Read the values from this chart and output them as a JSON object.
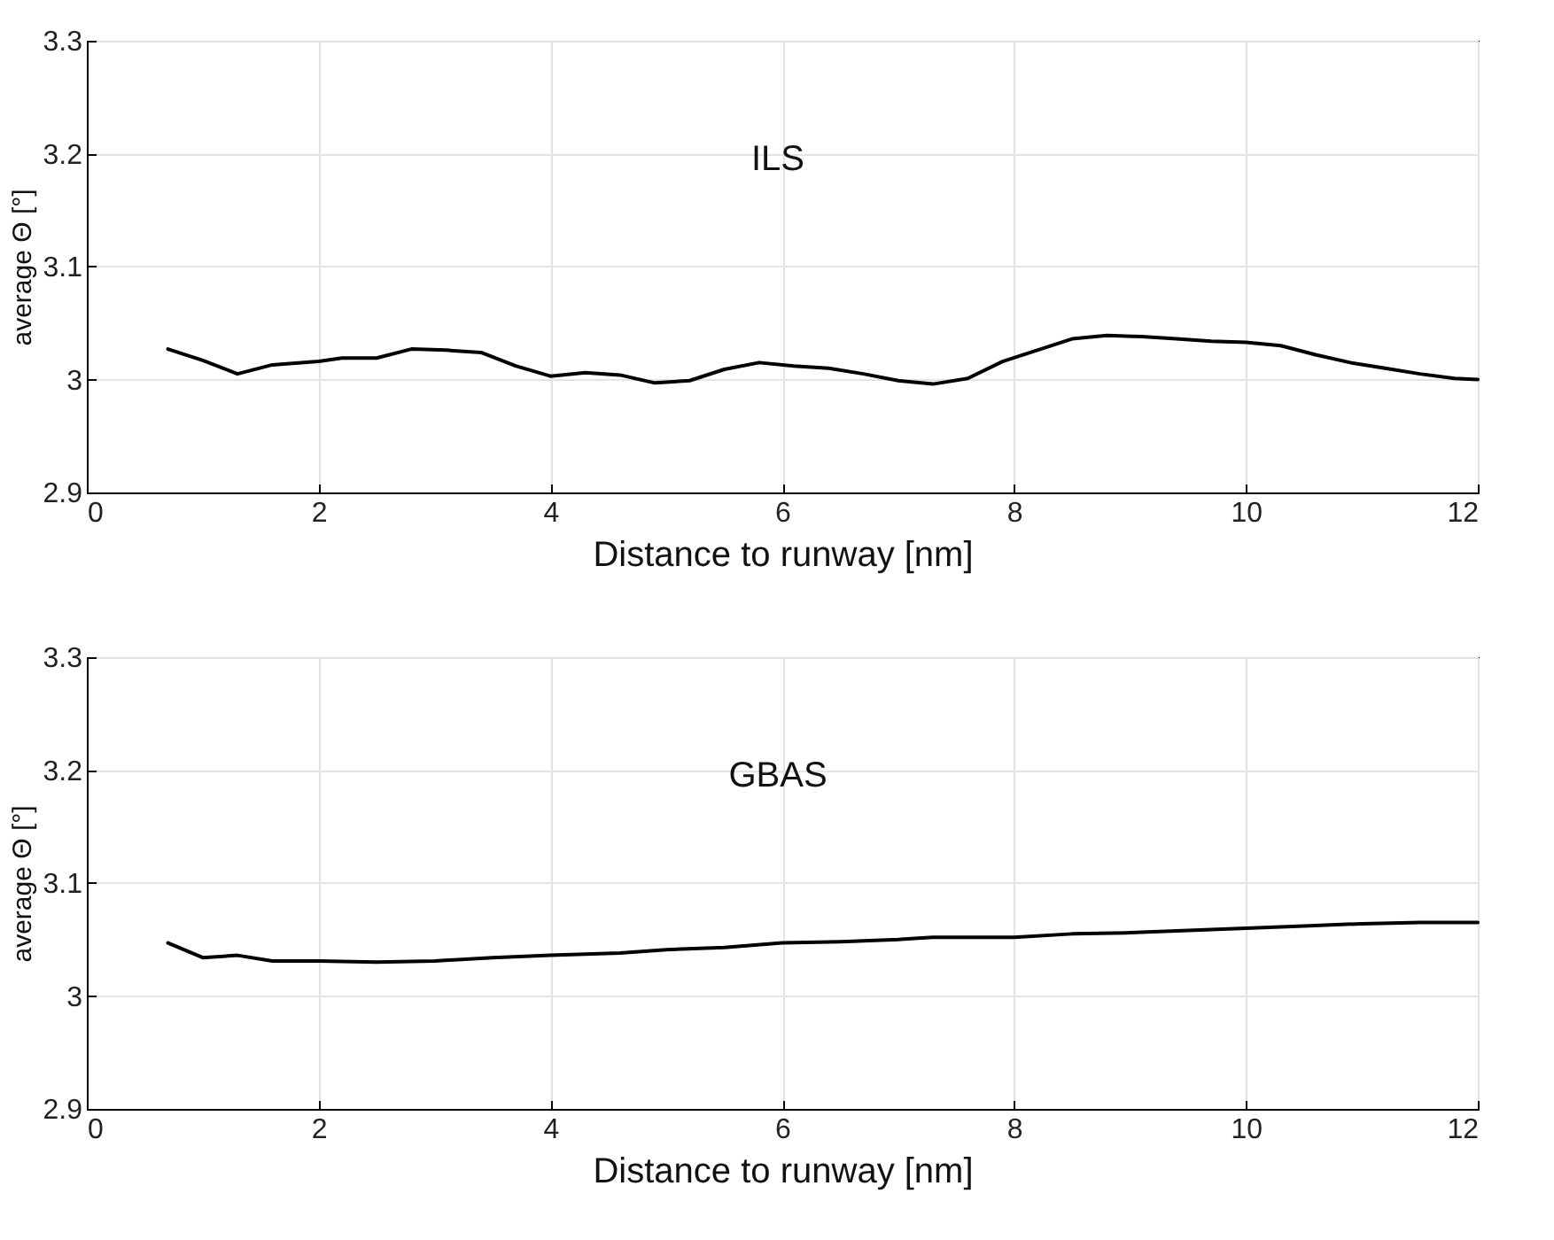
{
  "chart_data": [
    {
      "type": "line",
      "xlabel": "Distance to runway [nm]",
      "ylabel": "average Θ [°]",
      "annotations": [
        "ILS"
      ],
      "xlim": [
        0,
        12
      ],
      "xticks": [
        0,
        2,
        4,
        6,
        8,
        10,
        12
      ],
      "ylim": [
        2.9,
        3.3
      ],
      "yticks": [
        2.9,
        3,
        3.1,
        3.2,
        3.3
      ],
      "grid": true,
      "series": [
        {
          "color": "#000000",
          "x": [
            0.7,
            1.0,
            1.3,
            1.6,
            2.0,
            2.2,
            2.5,
            2.8,
            3.1,
            3.4,
            3.7,
            4.0,
            4.3,
            4.6,
            4.9,
            5.2,
            5.5,
            5.8,
            6.1,
            6.4,
            6.7,
            7.0,
            7.3,
            7.6,
            7.9,
            8.2,
            8.5,
            8.8,
            9.1,
            9.4,
            9.7,
            10.0,
            10.3,
            10.6,
            10.9,
            11.2,
            11.5,
            11.8,
            12.0
          ],
          "values": [
            3.027,
            3.017,
            3.005,
            3.013,
            3.016,
            3.019,
            3.019,
            3.027,
            3.026,
            3.024,
            3.012,
            3.003,
            3.006,
            3.004,
            2.997,
            2.999,
            3.009,
            3.015,
            3.012,
            3.01,
            3.005,
            2.999,
            2.996,
            3.001,
            3.016,
            3.026,
            3.036,
            3.039,
            3.038,
            3.036,
            3.034,
            3.033,
            3.03,
            3.022,
            3.015,
            3.01,
            3.005,
            3.001,
            3.0
          ]
        }
      ]
    },
    {
      "type": "line",
      "xlabel": "Distance to runway [nm]",
      "ylabel": "average Θ [°]",
      "annotations": [
        "GBAS"
      ],
      "xlim": [
        0,
        12
      ],
      "xticks": [
        0,
        2,
        4,
        6,
        8,
        10,
        12
      ],
      "ylim": [
        2.9,
        3.3
      ],
      "yticks": [
        2.9,
        3,
        3.1,
        3.2,
        3.3
      ],
      "grid": true,
      "series": [
        {
          "color": "#000000",
          "x": [
            0.7,
            1.0,
            1.3,
            1.6,
            2.0,
            2.5,
            3.0,
            3.5,
            4.0,
            4.6,
            5.0,
            5.5,
            6.0,
            6.5,
            7.0,
            7.3,
            8.0,
            8.5,
            9.0,
            9.5,
            10.0,
            10.5,
            11.0,
            11.5,
            12.0
          ],
          "values": [
            3.047,
            3.034,
            3.036,
            3.031,
            3.031,
            3.03,
            3.031,
            3.034,
            3.036,
            3.038,
            3.041,
            3.043,
            3.047,
            3.048,
            3.05,
            3.052,
            3.052,
            3.055,
            3.056,
            3.058,
            3.06,
            3.062,
            3.064,
            3.065,
            3.065
          ]
        }
      ]
    }
  ]
}
